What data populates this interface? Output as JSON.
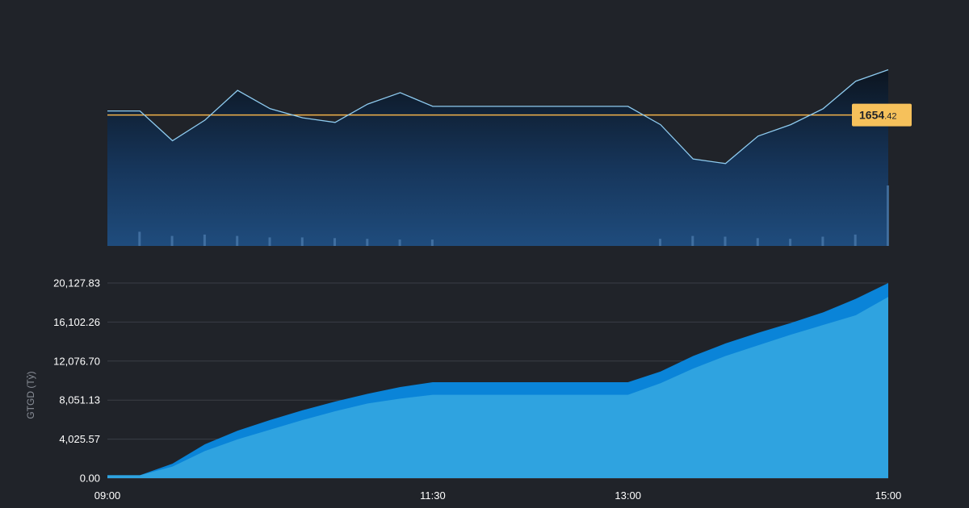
{
  "colors": {
    "background": "#202329",
    "price_line": "#8ecbf0",
    "reference_line": "#f2b24a",
    "badge_bg": "#f6c15b",
    "area_total": "#0a84d8",
    "area_part": "#2fa3e0",
    "grid": "#3a3e46",
    "volume": "#4f7fb0"
  },
  "price_panel": {
    "reference_price": 1654.42,
    "badge": {
      "main": "1654",
      "frac": ".42"
    }
  },
  "chart_data": [
    {
      "type": "line",
      "panel": "price",
      "x": [
        "09:00",
        "09:15",
        "09:30",
        "09:45",
        "10:00",
        "10:15",
        "10:30",
        "10:45",
        "11:00",
        "11:15",
        "11:30",
        "11:45",
        "12:00",
        "12:15",
        "12:30",
        "12:45",
        "13:00",
        "13:15",
        "13:30",
        "13:45",
        "14:00",
        "14:15",
        "14:30",
        "14:45",
        "15:00"
      ],
      "series": [
        {
          "values": [
            1658,
            1658,
            1632,
            1650,
            1676,
            1660,
            1652,
            1648,
            1664,
            1674,
            1662,
            1662,
            1662,
            1662,
            1662,
            1662,
            1662,
            1646,
            1616,
            1612,
            1636,
            1646,
            1660,
            1684,
            1694
          ]
        }
      ],
      "volume": [
        0,
        20,
        14,
        16,
        14,
        12,
        12,
        11,
        10,
        9,
        9,
        0,
        0,
        0,
        0,
        0,
        0,
        10,
        14,
        13,
        11,
        10,
        13,
        16,
        85
      ],
      "ylim": [
        1540,
        1700
      ],
      "grid": false,
      "legend": "none"
    },
    {
      "type": "area",
      "panel": "cumulative",
      "ylabel": "GTGD (Tỷ)",
      "xticks": [
        "09:00",
        "11:30",
        "13:00",
        "15:00"
      ],
      "yticks": [
        "0.00",
        "4,025.57",
        "8,051.13",
        "12,076.70",
        "16,102.26",
        "20,127.83"
      ],
      "ylim": [
        0,
        20127.83
      ],
      "grid": true,
      "x": [
        "09:00",
        "09:15",
        "09:30",
        "09:45",
        "10:00",
        "10:15",
        "10:30",
        "10:45",
        "11:00",
        "11:15",
        "11:30",
        "11:45",
        "12:00",
        "12:15",
        "12:30",
        "12:45",
        "13:00",
        "13:15",
        "13:30",
        "13:45",
        "14:00",
        "14:15",
        "14:30",
        "14:45",
        "15:00"
      ],
      "series": [
        {
          "values": [
            300,
            300,
            1500,
            3500,
            4900,
            6000,
            7000,
            7900,
            8700,
            9400,
            9900,
            9900,
            9900,
            9900,
            9900,
            9900,
            9900,
            11000,
            12600,
            13900,
            15000,
            16000,
            17100,
            18500,
            20127.83
          ]
        },
        {
          "values": [
            300,
            300,
            1200,
            2800,
            4000,
            5000,
            6000,
            6900,
            7700,
            8200,
            8600,
            8600,
            8600,
            8600,
            8600,
            8600,
            8600,
            9800,
            11300,
            12600,
            13700,
            14800,
            15800,
            16800,
            18700
          ]
        }
      ],
      "legend": "none"
    }
  ]
}
